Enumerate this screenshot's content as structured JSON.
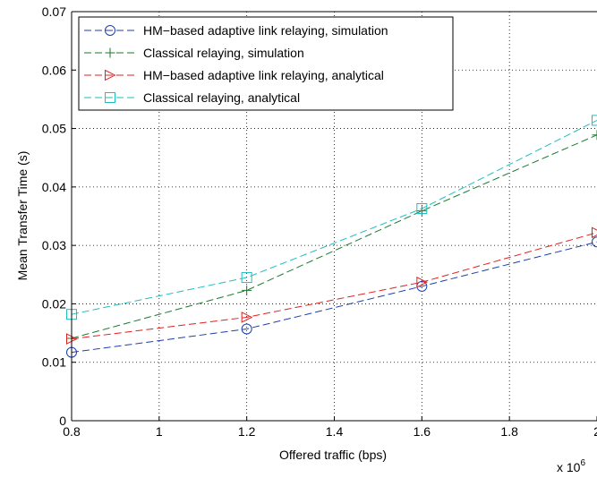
{
  "chart_data": {
    "type": "line",
    "title": "",
    "xlabel": "Offered traffic (bps)",
    "ylabel": "Mean Transfer Time (s)",
    "x_multiplier_label": "x 10",
    "x_multiplier_exponent": "6",
    "x": [
      0.8,
      1.2,
      1.6,
      2.0
    ],
    "xlim": [
      0.8,
      2.0
    ],
    "ylim": [
      0,
      0.07
    ],
    "xticks": [
      "0.8",
      "1",
      "1.2",
      "1.4",
      "1.6",
      "1.8",
      "2"
    ],
    "yticks": [
      "0",
      "0.01",
      "0.02",
      "0.03",
      "0.04",
      "0.05",
      "0.06",
      "0.07"
    ],
    "grid": true,
    "legend_position": "top-left",
    "series": [
      {
        "name": "HM−based adaptive link relaying, simulation",
        "color": "#1f3fa8",
        "marker": "circle",
        "values": [
          0.0117,
          0.0157,
          0.023,
          0.0306
        ]
      },
      {
        "name": "Classical relaying, simulation",
        "color": "#1a7a2e",
        "marker": "plus",
        "values": [
          0.0141,
          0.0223,
          0.0359,
          0.0489
        ]
      },
      {
        "name": "HM−based adaptive link relaying, analytical",
        "color": "#e02020",
        "marker": "triangle-right",
        "values": [
          0.014,
          0.0177,
          0.0237,
          0.0322
        ]
      },
      {
        "name": "Classical relaying, analytical",
        "color": "#1fbfbf",
        "marker": "square",
        "values": [
          0.0182,
          0.0245,
          0.0363,
          0.0514
        ]
      }
    ]
  }
}
